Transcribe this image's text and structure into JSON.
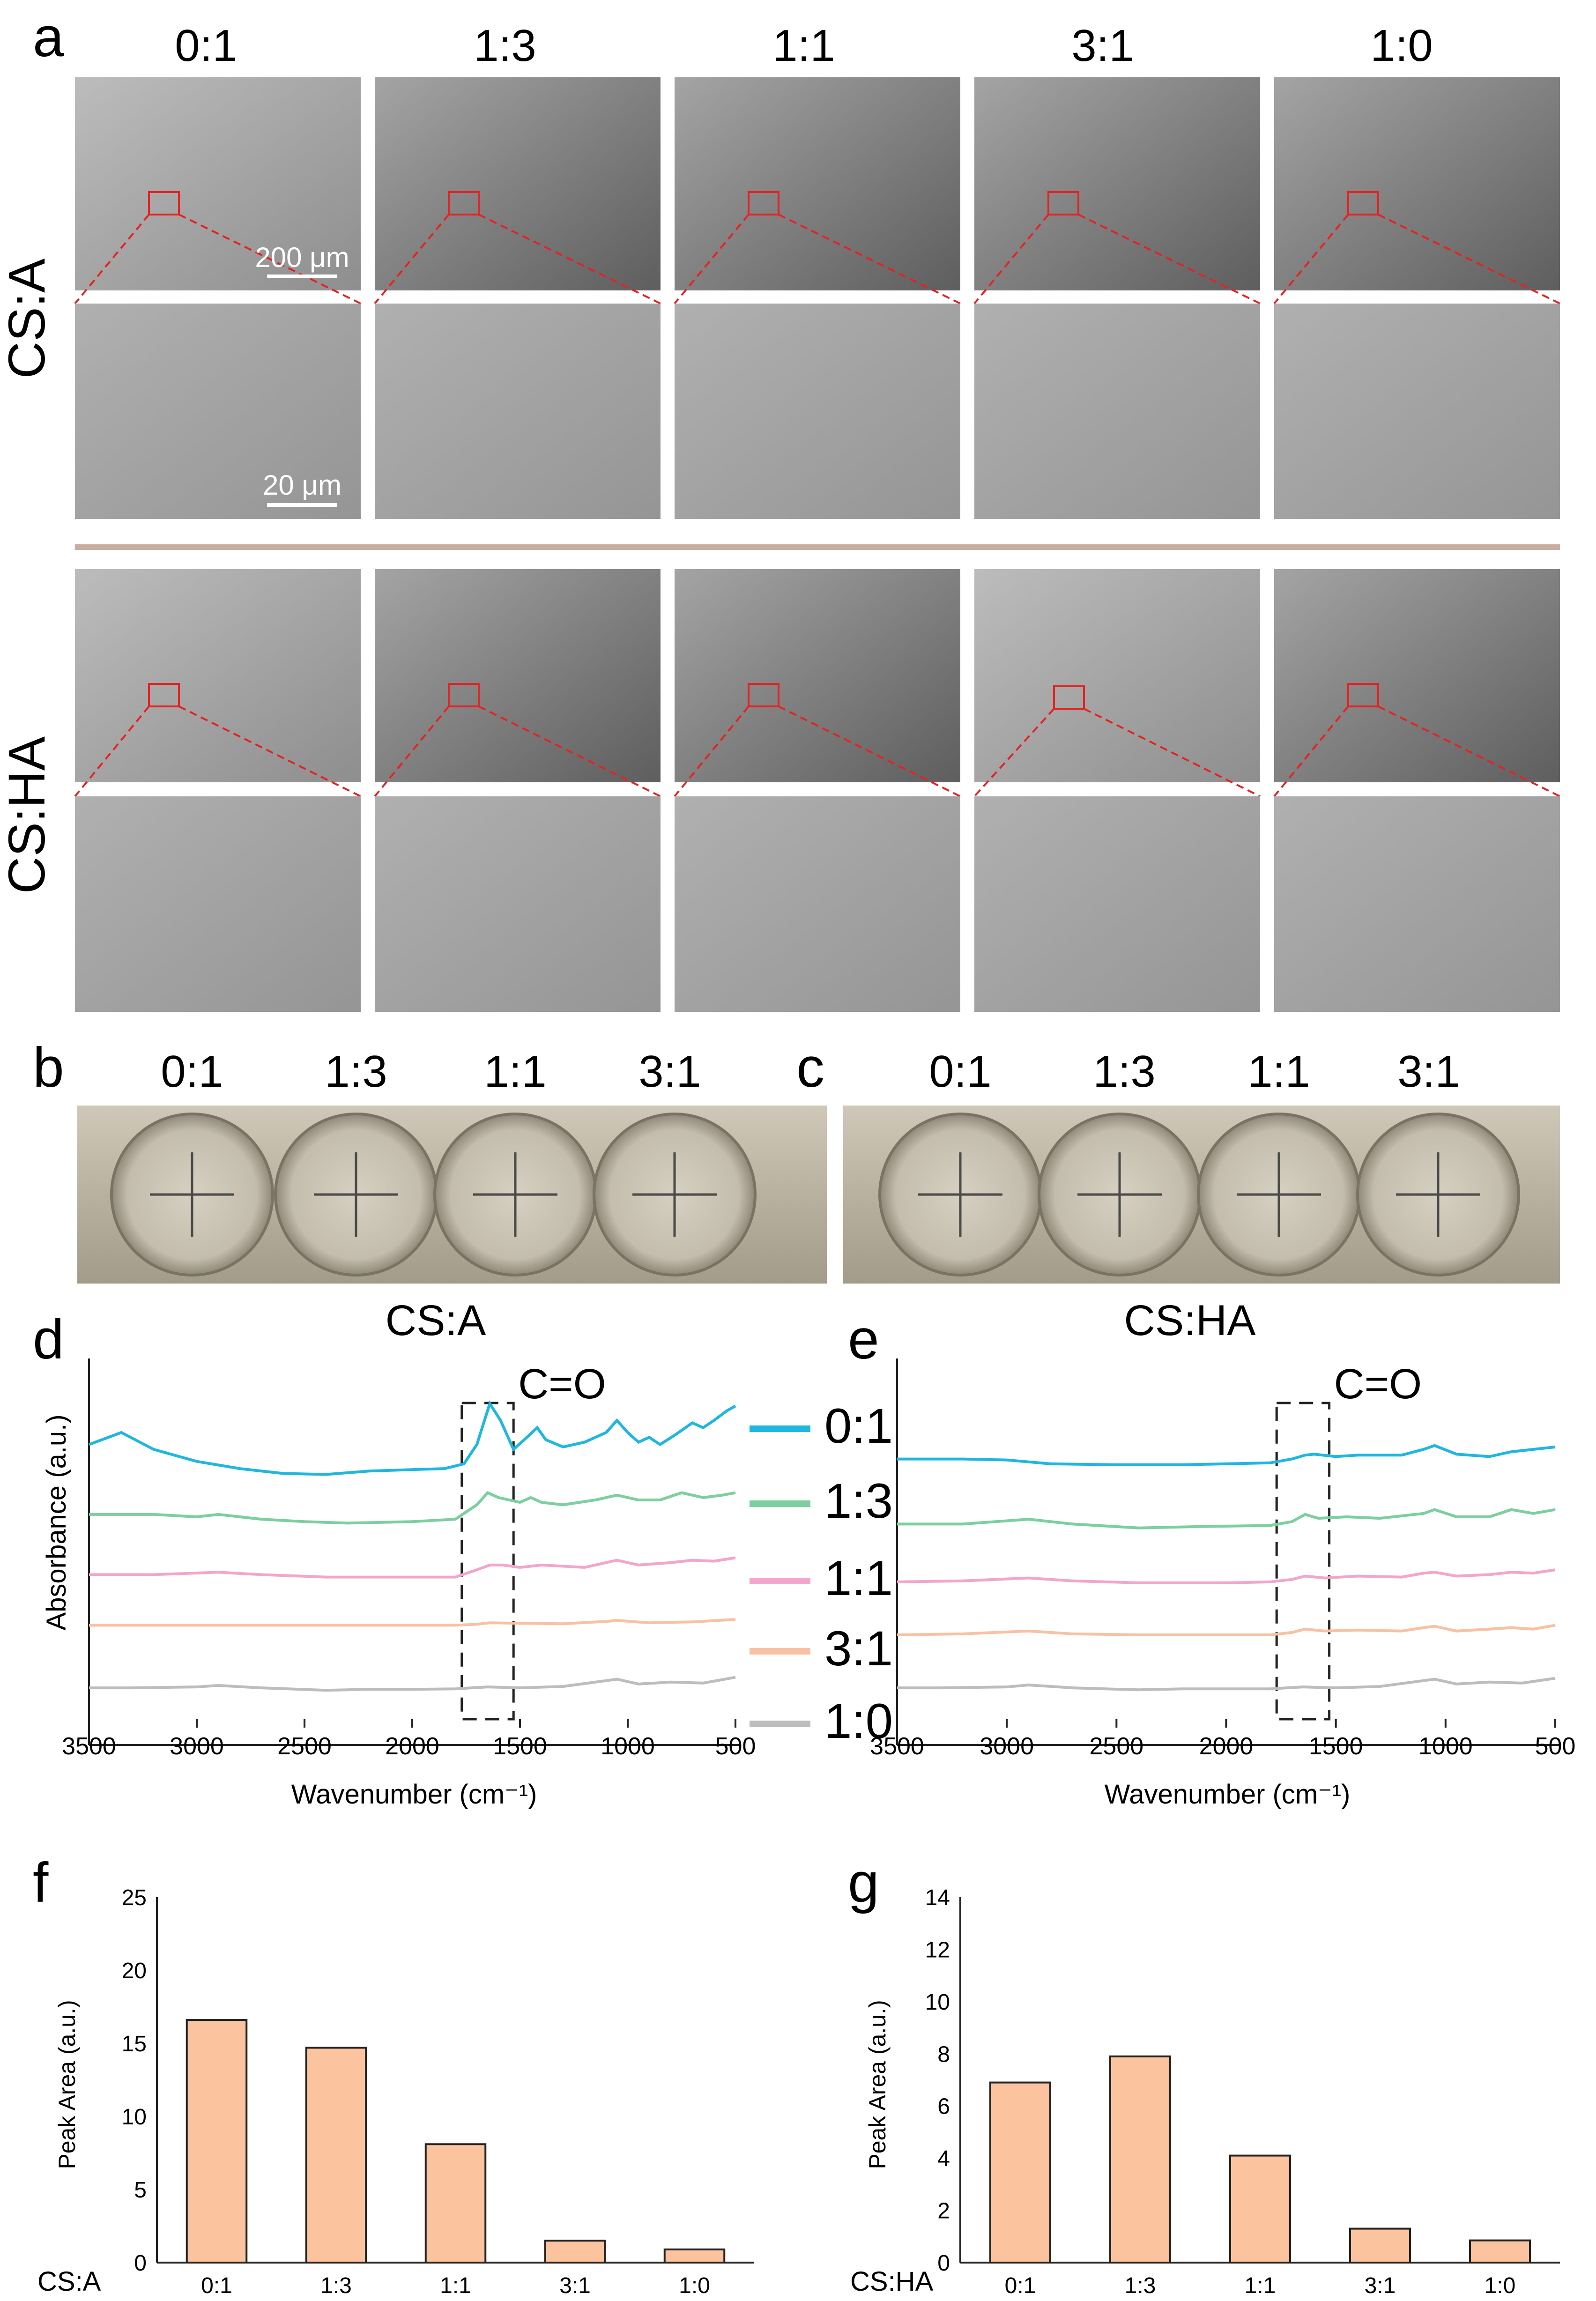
{
  "panel_a": {
    "letter": "a",
    "ratios": [
      "0:1",
      "1:3",
      "1:1",
      "3:1",
      "1:0"
    ],
    "rows": [
      {
        "label": "CS:A",
        "scale_low": "200 μm",
        "scale_high": "20 μm"
      },
      {
        "label": "CS:HA"
      }
    ],
    "colors": {
      "box": "#e52222",
      "divider": "#c9ada1",
      "image_gray": "#8c8c8c"
    }
  },
  "panel_b": {
    "letter": "b",
    "ratios": [
      "0:1",
      "1:3",
      "1:1",
      "3:1"
    ]
  },
  "panel_c": {
    "letter": "c",
    "ratios": [
      "0:1",
      "1:3",
      "1:1",
      "3:1"
    ]
  },
  "chart_data": [
    {
      "id": "d",
      "letter": "d",
      "type": "line",
      "title": "CS:A",
      "xlabel": "Wavenumber (cm⁻¹)",
      "ylabel": "Absorbance (a.u.)",
      "xlim": [
        3500,
        500
      ],
      "xticks": [
        3500,
        3000,
        2500,
        2000,
        1500,
        1000,
        500
      ],
      "annotation": "C=O",
      "annotation_range": [
        1770,
        1530
      ],
      "series": [
        {
          "name": "0:1",
          "color": "#1fb7e0",
          "baseline": 5.6,
          "points": [
            [
              3500,
              0.1
            ],
            [
              3350,
              0.35
            ],
            [
              3200,
              0.0
            ],
            [
              3000,
              -0.25
            ],
            [
              2800,
              -0.4
            ],
            [
              2600,
              -0.5
            ],
            [
              2400,
              -0.52
            ],
            [
              2200,
              -0.45
            ],
            [
              2000,
              -0.42
            ],
            [
              1850,
              -0.4
            ],
            [
              1760,
              -0.3
            ],
            [
              1700,
              0.1
            ],
            [
              1640,
              0.95
            ],
            [
              1590,
              0.6
            ],
            [
              1530,
              0.0
            ],
            [
              1480,
              0.2
            ],
            [
              1420,
              0.45
            ],
            [
              1380,
              0.2
            ],
            [
              1300,
              0.05
            ],
            [
              1200,
              0.15
            ],
            [
              1100,
              0.35
            ],
            [
              1050,
              0.6
            ],
            [
              1000,
              0.35
            ],
            [
              950,
              0.15
            ],
            [
              900,
              0.25
            ],
            [
              850,
              0.1
            ],
            [
              780,
              0.3
            ],
            [
              700,
              0.55
            ],
            [
              650,
              0.45
            ],
            [
              600,
              0.6
            ],
            [
              540,
              0.8
            ],
            [
              500,
              0.9
            ]
          ]
        },
        {
          "name": "1:3",
          "color": "#7ccf9e",
          "baseline": 4.25,
          "points": [
            [
              3500,
              0.0
            ],
            [
              3200,
              0.0
            ],
            [
              3000,
              -0.05
            ],
            [
              2900,
              0.0
            ],
            [
              2700,
              -0.1
            ],
            [
              2500,
              -0.15
            ],
            [
              2300,
              -0.18
            ],
            [
              2000,
              -0.15
            ],
            [
              1800,
              -0.1
            ],
            [
              1700,
              0.2
            ],
            [
              1650,
              0.45
            ],
            [
              1600,
              0.35
            ],
            [
              1550,
              0.3
            ],
            [
              1500,
              0.25
            ],
            [
              1450,
              0.35
            ],
            [
              1400,
              0.25
            ],
            [
              1300,
              0.2
            ],
            [
              1150,
              0.3
            ],
            [
              1050,
              0.4
            ],
            [
              950,
              0.3
            ],
            [
              850,
              0.3
            ],
            [
              750,
              0.45
            ],
            [
              650,
              0.35
            ],
            [
              560,
              0.4
            ],
            [
              500,
              0.45
            ]
          ]
        },
        {
          "name": "1:1",
          "color": "#f2a6cc",
          "baseline": 3.0,
          "points": [
            [
              3500,
              0.0
            ],
            [
              3200,
              0.0
            ],
            [
              2900,
              0.05
            ],
            [
              2700,
              0.0
            ],
            [
              2400,
              -0.05
            ],
            [
              2000,
              -0.05
            ],
            [
              1800,
              -0.05
            ],
            [
              1700,
              0.1
            ],
            [
              1640,
              0.2
            ],
            [
              1580,
              0.2
            ],
            [
              1500,
              0.15
            ],
            [
              1400,
              0.2
            ],
            [
              1200,
              0.15
            ],
            [
              1100,
              0.25
            ],
            [
              1050,
              0.3
            ],
            [
              950,
              0.2
            ],
            [
              800,
              0.25
            ],
            [
              700,
              0.3
            ],
            [
              600,
              0.28
            ],
            [
              500,
              0.35
            ]
          ]
        },
        {
          "name": "3:1",
          "color": "#f7c2a4",
          "baseline": 1.95,
          "points": [
            [
              3500,
              0.0
            ],
            [
              3000,
              0.0
            ],
            [
              2500,
              0.0
            ],
            [
              2000,
              0.0
            ],
            [
              1800,
              0.0
            ],
            [
              1700,
              0.02
            ],
            [
              1640,
              0.05
            ],
            [
              1500,
              0.04
            ],
            [
              1300,
              0.03
            ],
            [
              1100,
              0.08
            ],
            [
              1050,
              0.1
            ],
            [
              900,
              0.05
            ],
            [
              700,
              0.07
            ],
            [
              500,
              0.12
            ]
          ]
        },
        {
          "name": "1:0",
          "color": "#bdbdbd",
          "baseline": 0.65,
          "points": [
            [
              3500,
              0.0
            ],
            [
              3300,
              0.0
            ],
            [
              3000,
              0.02
            ],
            [
              2900,
              0.05
            ],
            [
              2700,
              0.0
            ],
            [
              2400,
              -0.05
            ],
            [
              2200,
              -0.03
            ],
            [
              2000,
              -0.03
            ],
            [
              1800,
              -0.02
            ],
            [
              1650,
              0.02
            ],
            [
              1500,
              0.0
            ],
            [
              1300,
              0.03
            ],
            [
              1100,
              0.15
            ],
            [
              1050,
              0.18
            ],
            [
              950,
              0.08
            ],
            [
              800,
              0.12
            ],
            [
              650,
              0.1
            ],
            [
              500,
              0.22
            ]
          ]
        }
      ]
    },
    {
      "id": "e",
      "letter": "e",
      "type": "line",
      "title": "CS:HA",
      "xlabel": "Wavenumber (cm⁻¹)",
      "ylabel": "",
      "xlim": [
        3500,
        500
      ],
      "xticks": [
        3500,
        3000,
        2500,
        2000,
        1500,
        1000,
        500
      ],
      "annotation": "C=O",
      "annotation_range": [
        1770,
        1530
      ],
      "series": [
        {
          "name": "0:1",
          "color": "#1fb7e0",
          "baseline": 5.4,
          "points": [
            [
              3500,
              0.0
            ],
            [
              3200,
              0.0
            ],
            [
              3000,
              -0.02
            ],
            [
              2800,
              -0.1
            ],
            [
              2500,
              -0.12
            ],
            [
              2200,
              -0.12
            ],
            [
              2000,
              -0.1
            ],
            [
              1800,
              -0.08
            ],
            [
              1700,
              0.0
            ],
            [
              1640,
              0.08
            ],
            [
              1600,
              0.1
            ],
            [
              1500,
              0.05
            ],
            [
              1400,
              0.08
            ],
            [
              1200,
              0.08
            ],
            [
              1100,
              0.2
            ],
            [
              1050,
              0.28
            ],
            [
              950,
              0.1
            ],
            [
              800,
              0.05
            ],
            [
              700,
              0.15
            ],
            [
              600,
              0.2
            ],
            [
              500,
              0.25
            ]
          ]
        },
        {
          "name": "1:3",
          "color": "#7ccf9e",
          "baseline": 4.05,
          "points": [
            [
              3500,
              0.0
            ],
            [
              3200,
              0.0
            ],
            [
              2900,
              0.1
            ],
            [
              2700,
              0.0
            ],
            [
              2400,
              -0.08
            ],
            [
              2100,
              -0.05
            ],
            [
              1800,
              -0.03
            ],
            [
              1700,
              0.05
            ],
            [
              1640,
              0.2
            ],
            [
              1580,
              0.12
            ],
            [
              1450,
              0.15
            ],
            [
              1300,
              0.12
            ],
            [
              1100,
              0.22
            ],
            [
              1050,
              0.3
            ],
            [
              950,
              0.15
            ],
            [
              800,
              0.15
            ],
            [
              700,
              0.3
            ],
            [
              600,
              0.22
            ],
            [
              500,
              0.3
            ]
          ]
        },
        {
          "name": "1:1",
          "color": "#f2a6cc",
          "baseline": 2.85,
          "points": [
            [
              3500,
              0.0
            ],
            [
              3200,
              0.02
            ],
            [
              2900,
              0.08
            ],
            [
              2700,
              0.02
            ],
            [
              2400,
              -0.02
            ],
            [
              2000,
              -0.02
            ],
            [
              1800,
              0.0
            ],
            [
              1700,
              0.05
            ],
            [
              1640,
              0.12
            ],
            [
              1550,
              0.08
            ],
            [
              1400,
              0.12
            ],
            [
              1200,
              0.1
            ],
            [
              1100,
              0.18
            ],
            [
              1050,
              0.2
            ],
            [
              950,
              0.12
            ],
            [
              800,
              0.15
            ],
            [
              700,
              0.2
            ],
            [
              600,
              0.18
            ],
            [
              500,
              0.25
            ]
          ]
        },
        {
          "name": "3:1",
          "color": "#f7c2a4",
          "baseline": 1.75,
          "points": [
            [
              3500,
              0.0
            ],
            [
              3200,
              0.02
            ],
            [
              2900,
              0.08
            ],
            [
              2700,
              0.02
            ],
            [
              2400,
              0.0
            ],
            [
              2000,
              0.0
            ],
            [
              1800,
              0.0
            ],
            [
              1700,
              0.05
            ],
            [
              1640,
              0.12
            ],
            [
              1550,
              0.08
            ],
            [
              1400,
              0.1
            ],
            [
              1200,
              0.08
            ],
            [
              1100,
              0.15
            ],
            [
              1050,
              0.18
            ],
            [
              950,
              0.08
            ],
            [
              800,
              0.12
            ],
            [
              700,
              0.15
            ],
            [
              600,
              0.12
            ],
            [
              500,
              0.2
            ]
          ]
        },
        {
          "name": "1:0",
          "color": "#bdbdbd",
          "baseline": 0.65,
          "points": [
            [
              3500,
              0.0
            ],
            [
              3300,
              0.0
            ],
            [
              3000,
              0.02
            ],
            [
              2900,
              0.06
            ],
            [
              2700,
              0.0
            ],
            [
              2400,
              -0.04
            ],
            [
              2200,
              -0.02
            ],
            [
              2000,
              -0.02
            ],
            [
              1800,
              -0.02
            ],
            [
              1650,
              0.02
            ],
            [
              1500,
              0.0
            ],
            [
              1300,
              0.03
            ],
            [
              1100,
              0.15
            ],
            [
              1050,
              0.18
            ],
            [
              950,
              0.08
            ],
            [
              800,
              0.12
            ],
            [
              650,
              0.1
            ],
            [
              500,
              0.2
            ]
          ]
        }
      ]
    },
    {
      "id": "f",
      "letter": "f",
      "type": "bar",
      "xlabel": "CS:A",
      "ylabel": "Peak Area (a.u.)",
      "ylim": [
        0,
        25
      ],
      "yticks": [
        0,
        5,
        10,
        15,
        20,
        25
      ],
      "categories": [
        "0:1",
        "1:3",
        "1:1",
        "3:1",
        "1:0"
      ],
      "values": [
        16.6,
        14.7,
        8.1,
        1.5,
        0.9
      ],
      "bar_color": "#fbc39e"
    },
    {
      "id": "g",
      "letter": "g",
      "type": "bar",
      "xlabel": "CS:HA",
      "ylabel": "Peak Area (a.u.)",
      "ylim": [
        0,
        14
      ],
      "yticks": [
        0,
        2,
        4,
        6,
        8,
        10,
        12,
        14
      ],
      "categories": [
        "0:1",
        "1:3",
        "1:1",
        "3:1",
        "1:0"
      ],
      "values": [
        6.9,
        7.9,
        4.1,
        1.3,
        0.85
      ],
      "bar_color": "#fbc39e"
    }
  ]
}
